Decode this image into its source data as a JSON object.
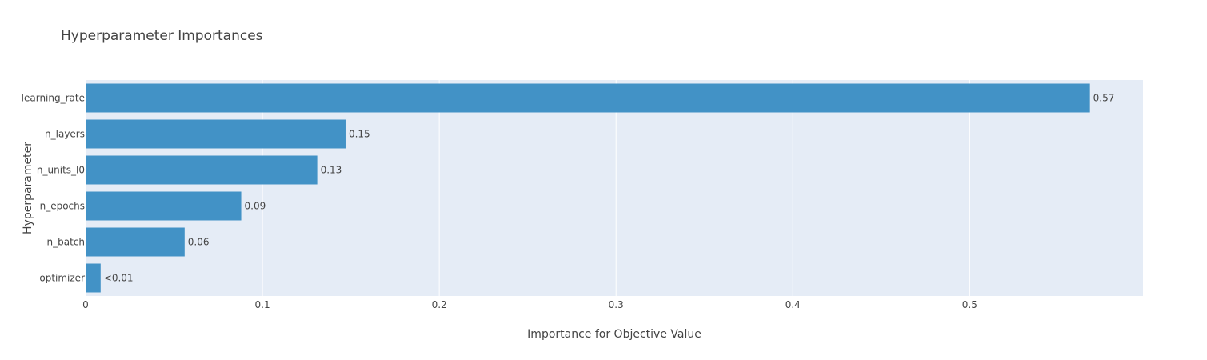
{
  "chart_data": {
    "type": "bar",
    "orientation": "horizontal",
    "title": "Hyperparameter Importances",
    "xlabel": "Importance for Objective Value",
    "ylabel": "Hyperparameter",
    "categories": [
      "learning_rate",
      "n_layers",
      "n_units_l0",
      "n_epochs",
      "n_batch",
      "optimizer"
    ],
    "values": [
      0.568,
      0.147,
      0.131,
      0.088,
      0.056,
      0.0085
    ],
    "data_labels": [
      "0.57",
      "0.15",
      "0.13",
      "0.09",
      "0.06",
      "<0.01"
    ],
    "xlim": [
      0,
      0.598
    ],
    "xticks": [
      0,
      0.1,
      0.2,
      0.3,
      0.4,
      0.5
    ],
    "xtick_labels": [
      "0",
      "0.1",
      "0.2",
      "0.3",
      "0.4",
      "0.5"
    ],
    "grid": true,
    "legend": "none"
  },
  "colors": {
    "bar": "#4292c6",
    "plot_bg": "#e5ecf6",
    "grid": "#ffffff",
    "text": "#444444"
  }
}
